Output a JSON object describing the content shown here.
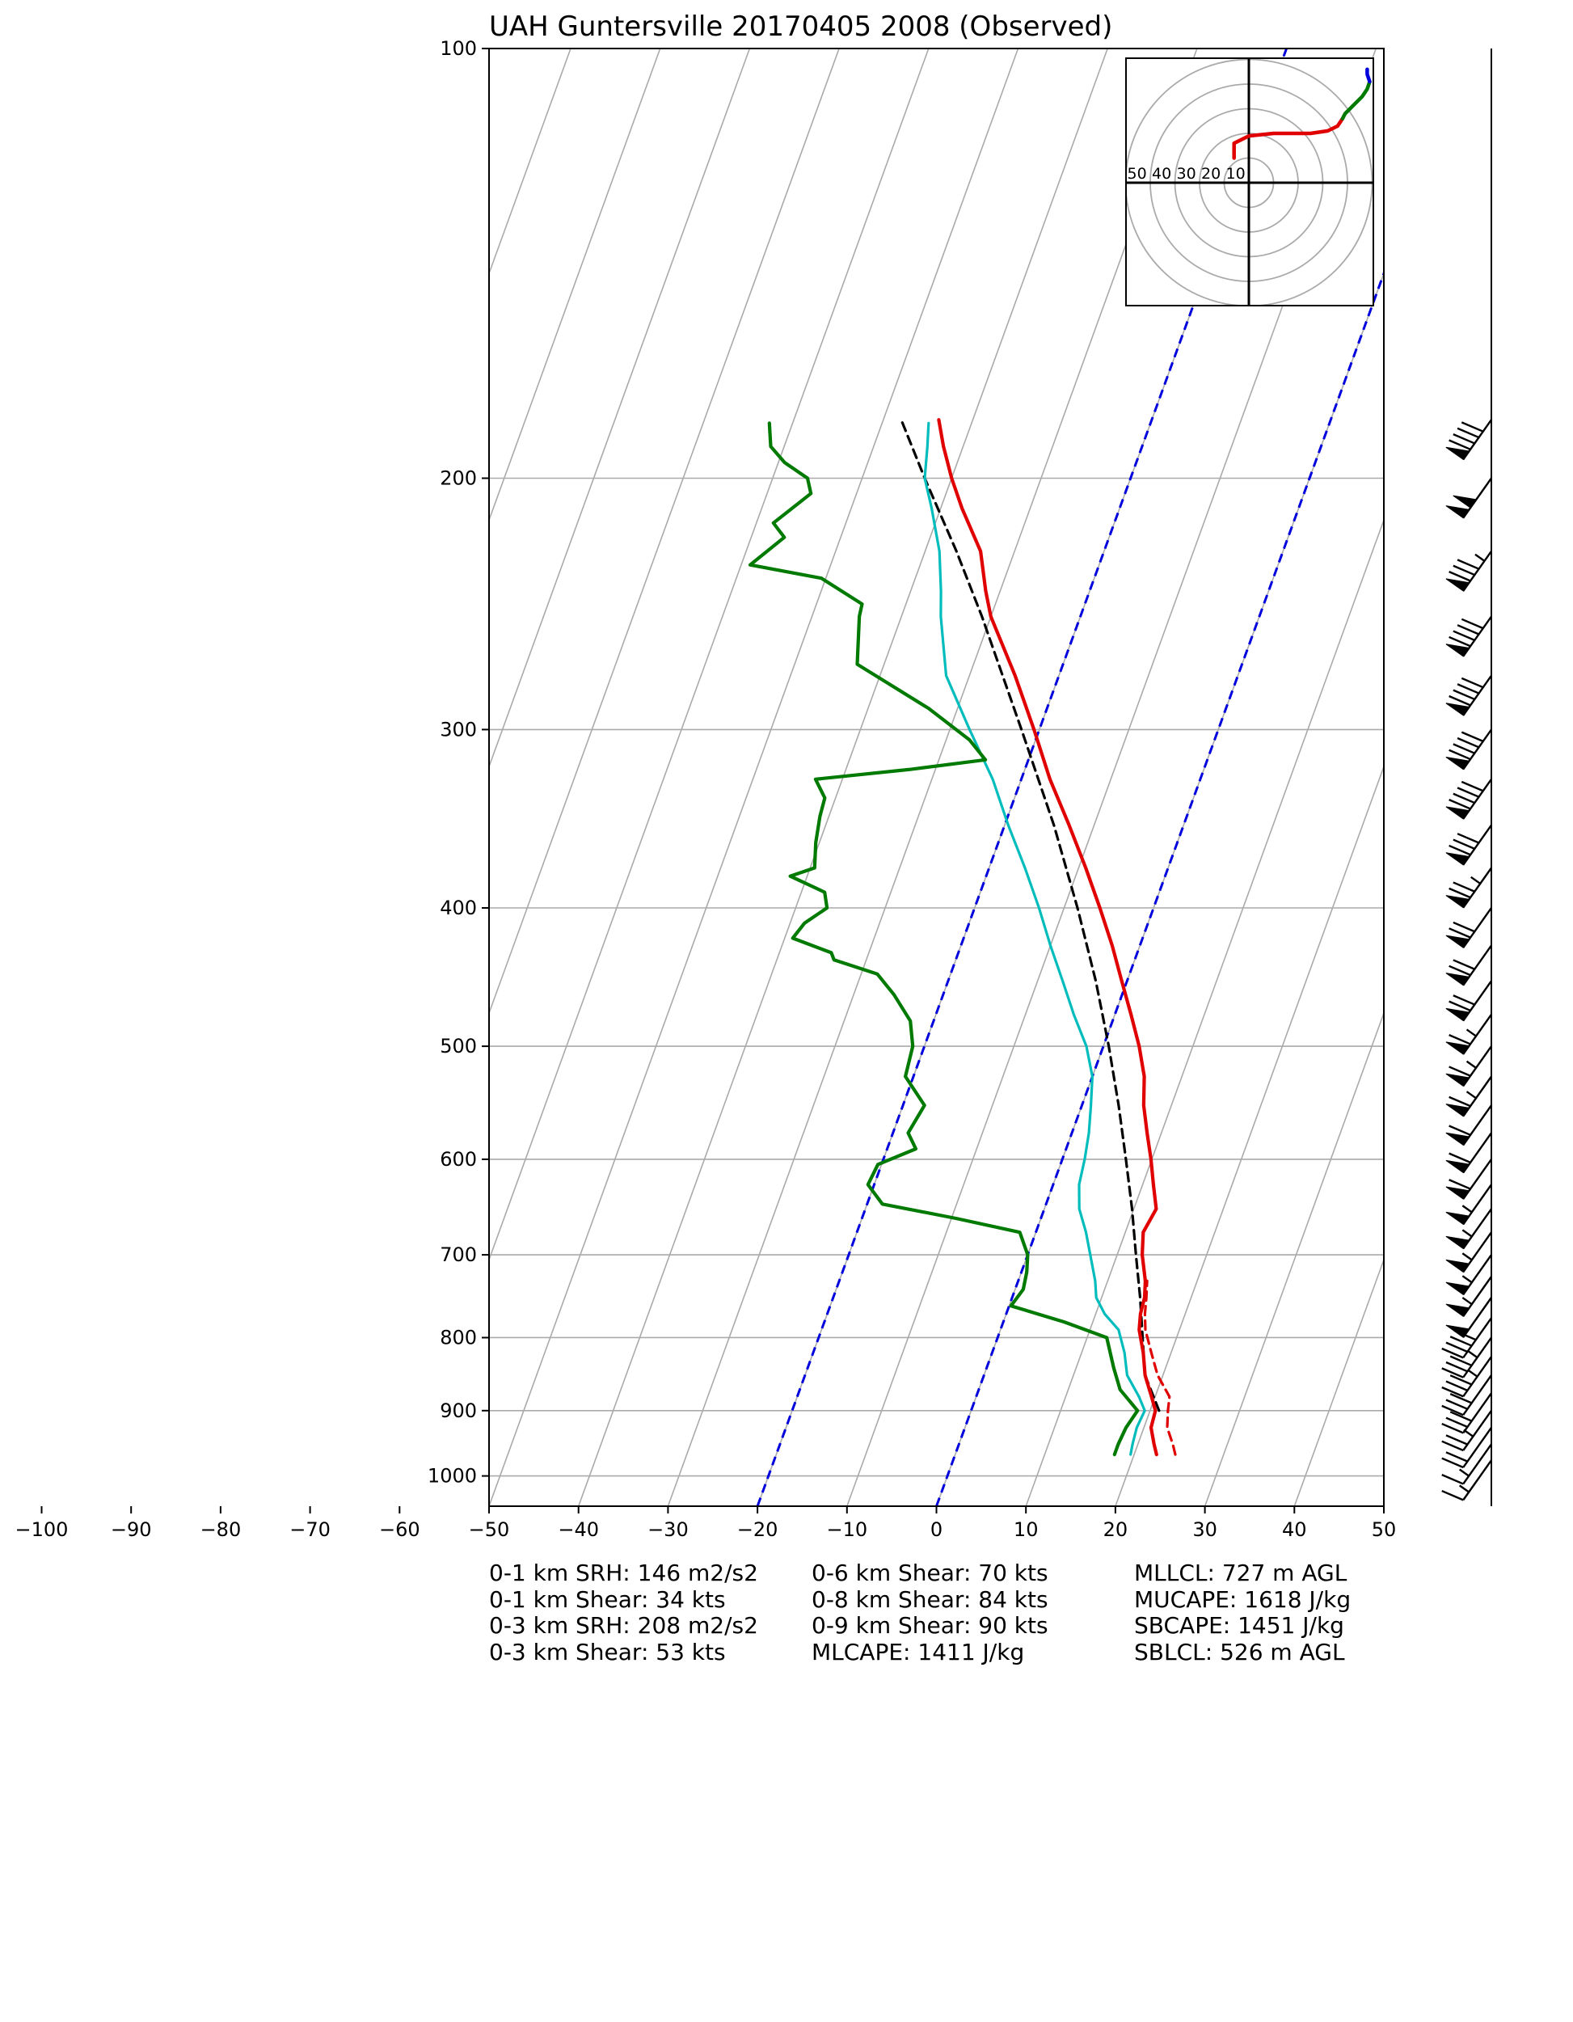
{
  "title": "UAH Guntersville 20170405 2008   (Observed)",
  "colors": {
    "temperature": "#e00000",
    "virtual_temperature": "#e00000",
    "dewpoint": "#007a00",
    "wetbulb": "#00bcbc",
    "parcel": "#000000",
    "moist_adiabat_ref": "#0000dd",
    "isotherm": "#aaaaaa",
    "isobar": "#aaaaaa"
  },
  "stats": {
    "col1": [
      "0-1 km SRH: 146 m2/s2",
      "0-1 km Shear: 34 kts",
      "0-3 km SRH: 208 m2/s2",
      "0-3 km Shear: 53 kts"
    ],
    "col2": [
      "0-6 km Shear: 70 kts",
      "0-8 km Shear: 84 kts",
      "0-9 km Shear: 90 kts",
      "MLCAPE: 1411 J/kg"
    ],
    "col3": [
      "MLLCL: 727 m AGL",
      "MUCAPE: 1618 J/kg",
      "SBCAPE: 1451 J/kg",
      "SBLCL: 526 m AGL"
    ]
  },
  "hodograph": {
    "ring_labels": [
      "50",
      "40",
      "30",
      "20",
      "10"
    ],
    "ring_values": [
      10,
      20,
      30,
      40,
      50
    ],
    "trace_red": [
      [
        -6,
        -10
      ],
      [
        -6,
        -16
      ],
      [
        0,
        -19
      ],
      [
        10,
        -20
      ],
      [
        18,
        -20
      ],
      [
        25,
        -20
      ],
      [
        32,
        -21
      ],
      [
        36,
        -23
      ],
      [
        38,
        -26
      ]
    ],
    "trace_green": [
      [
        38,
        -26
      ],
      [
        39,
        -28
      ],
      [
        43,
        -32
      ],
      [
        46,
        -35
      ],
      [
        48,
        -38
      ],
      [
        49,
        -41
      ]
    ],
    "trace_blue": [
      [
        49,
        -41
      ],
      [
        48,
        -44
      ],
      [
        48,
        -46
      ]
    ]
  },
  "chart_data": {
    "type": "skew-t",
    "title": "UAH Guntersville 20170405 2008   (Observed)",
    "x_label": "",
    "y_label": "",
    "x_ticks": [
      -100,
      -90,
      -80,
      -70,
      -60,
      -50,
      -40,
      -30,
      -20,
      -10,
      0,
      10,
      20,
      30,
      40,
      50
    ],
    "y_ticks": [
      100,
      200,
      300,
      400,
      500,
      600,
      700,
      800,
      900,
      1000
    ],
    "xlim": [
      -50,
      50
    ],
    "ylim_hPa": [
      1050,
      100
    ],
    "y_scale": "log",
    "skew_angle": "approx 70 deg",
    "temperature": [
      [
        966,
        22.5
      ],
      [
        950,
        21.8
      ],
      [
        925,
        20.8
      ],
      [
        900,
        20.6
      ],
      [
        880,
        19.6
      ],
      [
        850,
        18.0
      ],
      [
        820,
        16.9
      ],
      [
        790,
        15.5
      ],
      [
        770,
        15.0
      ],
      [
        750,
        14.8
      ],
      [
        730,
        14.2
      ],
      [
        700,
        12.8
      ],
      [
        675,
        12.0
      ],
      [
        650,
        12.5
      ],
      [
        625,
        11.2
      ],
      [
        600,
        9.9
      ],
      [
        575,
        8.4
      ],
      [
        550,
        6.9
      ],
      [
        525,
        5.8
      ],
      [
        500,
        4.0
      ],
      [
        475,
        1.8
      ],
      [
        450,
        -0.6
      ],
      [
        425,
        -3.1
      ],
      [
        400,
        -6.0
      ],
      [
        375,
        -9.2
      ],
      [
        350,
        -12.8
      ],
      [
        325,
        -16.8
      ],
      [
        300,
        -20.6
      ],
      [
        275,
        -24.9
      ],
      [
        250,
        -30.0
      ],
      [
        240,
        -31.6
      ],
      [
        225,
        -33.8
      ],
      [
        210,
        -37.6
      ],
      [
        200,
        -40.0
      ],
      [
        190,
        -42.2
      ],
      [
        182,
        -43.8
      ]
    ],
    "virtual_temperature": [
      [
        966,
        24.6
      ],
      [
        950,
        23.9
      ],
      [
        925,
        22.6
      ],
      [
        900,
        22.0
      ],
      [
        880,
        21.6
      ],
      [
        850,
        19.4
      ],
      [
        820,
        17.8
      ],
      [
        790,
        16.2
      ],
      [
        770,
        15.5
      ],
      [
        750,
        15.0
      ],
      [
        730,
        14.4
      ]
    ],
    "dewpoint": [
      [
        966,
        17.8
      ],
      [
        950,
        17.8
      ],
      [
        925,
        18.0
      ],
      [
        900,
        18.6
      ],
      [
        870,
        15.8
      ],
      [
        840,
        14.2
      ],
      [
        800,
        12.2
      ],
      [
        780,
        6.8
      ],
      [
        760,
        0.2
      ],
      [
        740,
        0.9
      ],
      [
        720,
        0.6
      ],
      [
        700,
        0.0
      ],
      [
        675,
        -1.8
      ],
      [
        660,
        -9.5
      ],
      [
        645,
        -18.3
      ],
      [
        625,
        -20.7
      ],
      [
        605,
        -20.4
      ],
      [
        590,
        -16.8
      ],
      [
        575,
        -18.3
      ],
      [
        550,
        -17.6
      ],
      [
        525,
        -20.9
      ],
      [
        500,
        -21.3
      ],
      [
        480,
        -22.6
      ],
      [
        460,
        -25.5
      ],
      [
        445,
        -28.2
      ],
      [
        435,
        -33.6
      ],
      [
        430,
        -34.2
      ],
      [
        420,
        -39.1
      ],
      [
        410,
        -38.4
      ],
      [
        400,
        -36.5
      ],
      [
        390,
        -37.4
      ],
      [
        380,
        -41.9
      ],
      [
        375,
        -39.5
      ],
      [
        360,
        -40.4
      ],
      [
        345,
        -41.0
      ],
      [
        335,
        -41.2
      ],
      [
        325,
        -43.0
      ],
      [
        320,
        -33.0
      ],
      [
        315,
        -24.8
      ],
      [
        305,
        -27.4
      ],
      [
        290,
        -33.2
      ],
      [
        270,
        -43.0
      ],
      [
        250,
        -44.7
      ],
      [
        245,
        -44.9
      ],
      [
        235,
        -50.5
      ],
      [
        230,
        -59.0
      ],
      [
        220,
        -56.3
      ],
      [
        215,
        -58.1
      ],
      [
        205,
        -55.1
      ],
      [
        200,
        -56.1
      ],
      [
        195,
        -59.3
      ],
      [
        190,
        -61.5
      ],
      [
        183,
        -62.6
      ]
    ],
    "wetbulb": [
      [
        966,
        19.6
      ],
      [
        950,
        19.4
      ],
      [
        925,
        19.2
      ],
      [
        900,
        19.4
      ],
      [
        880,
        18.2
      ],
      [
        850,
        16.0
      ],
      [
        820,
        14.8
      ],
      [
        790,
        13.2
      ],
      [
        770,
        11.0
      ],
      [
        750,
        9.4
      ],
      [
        730,
        8.6
      ],
      [
        700,
        7.0
      ],
      [
        675,
        5.6
      ],
      [
        650,
        3.9
      ],
      [
        625,
        2.9
      ],
      [
        600,
        2.5
      ],
      [
        575,
        1.9
      ],
      [
        550,
        1.0
      ],
      [
        525,
        0.0
      ],
      [
        500,
        -1.9
      ],
      [
        475,
        -4.6
      ],
      [
        450,
        -7.2
      ],
      [
        425,
        -10.0
      ],
      [
        400,
        -12.8
      ],
      [
        375,
        -16.0
      ],
      [
        350,
        -19.6
      ],
      [
        325,
        -23.2
      ],
      [
        300,
        -27.8
      ],
      [
        275,
        -32.6
      ],
      [
        250,
        -35.6
      ],
      [
        240,
        -36.6
      ],
      [
        225,
        -38.4
      ],
      [
        210,
        -41.0
      ],
      [
        200,
        -43.0
      ],
      [
        190,
        -44.0
      ],
      [
        183,
        -44.8
      ]
    ],
    "parcel": [
      [
        900,
        21.0
      ],
      [
        850,
        18.0
      ],
      [
        800,
        16.2
      ],
      [
        750,
        14.3
      ],
      [
        700,
        12.1
      ],
      [
        650,
        9.8
      ],
      [
        600,
        7.1
      ],
      [
        550,
        4.1
      ],
      [
        500,
        0.6
      ],
      [
        450,
        -3.5
      ],
      [
        400,
        -8.5
      ],
      [
        350,
        -14.5
      ],
      [
        300,
        -22.0
      ],
      [
        250,
        -31.0
      ],
      [
        225,
        -36.5
      ],
      [
        200,
        -43.0
      ],
      [
        182,
        -48.0
      ]
    ],
    "reference_lines": [
      {
        "t_surface": -20
      },
      {
        "t_surface": 0
      }
    ],
    "wind_barbs": [
      {
        "p": 975,
        "speed_kt": 15
      },
      {
        "p": 950,
        "speed_kt": 15
      },
      {
        "p": 925,
        "speed_kt": 20
      },
      {
        "p": 900,
        "speed_kt": 25
      },
      {
        "p": 875,
        "speed_kt": 30
      },
      {
        "p": 850,
        "speed_kt": 30
      },
      {
        "p": 825,
        "speed_kt": 35
      },
      {
        "p": 800,
        "speed_kt": 35
      },
      {
        "p": 775,
        "speed_kt": 40
      },
      {
        "p": 750,
        "speed_kt": 50
      },
      {
        "p": 725,
        "speed_kt": 55
      },
      {
        "p": 700,
        "speed_kt": 55
      },
      {
        "p": 675,
        "speed_kt": 55
      },
      {
        "p": 650,
        "speed_kt": 55
      },
      {
        "p": 625,
        "speed_kt": 55
      },
      {
        "p": 600,
        "speed_kt": 60
      },
      {
        "p": 575,
        "speed_kt": 60
      },
      {
        "p": 550,
        "speed_kt": 60
      },
      {
        "p": 525,
        "speed_kt": 65
      },
      {
        "p": 500,
        "speed_kt": 65
      },
      {
        "p": 475,
        "speed_kt": 65
      },
      {
        "p": 450,
        "speed_kt": 70
      },
      {
        "p": 425,
        "speed_kt": 70
      },
      {
        "p": 400,
        "speed_kt": 70
      },
      {
        "p": 375,
        "speed_kt": 75
      },
      {
        "p": 350,
        "speed_kt": 80
      },
      {
        "p": 325,
        "speed_kt": 90
      },
      {
        "p": 300,
        "speed_kt": 90
      },
      {
        "p": 275,
        "speed_kt": 90
      },
      {
        "p": 250,
        "speed_kt": 90
      },
      {
        "p": 225,
        "speed_kt": 85
      },
      {
        "p": 200,
        "speed_kt": 100
      },
      {
        "p": 182,
        "speed_kt": 90
      }
    ]
  }
}
